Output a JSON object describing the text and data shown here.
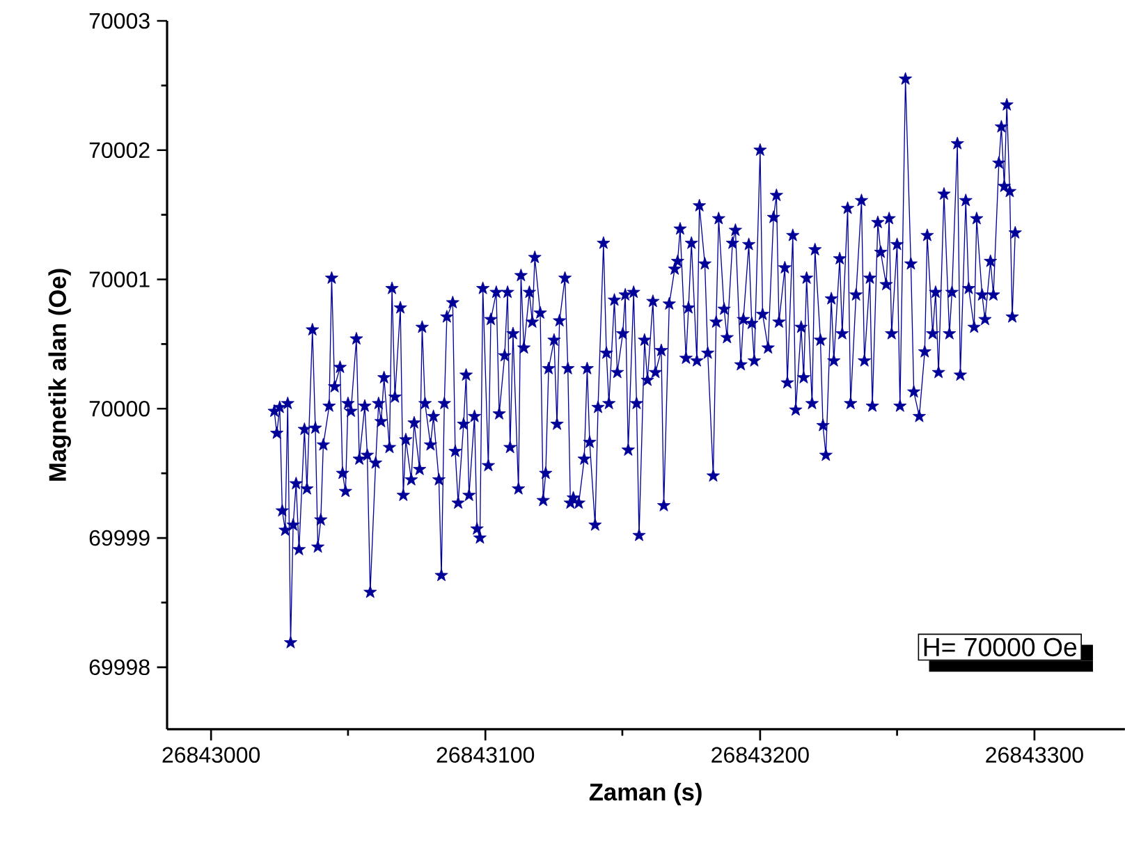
{
  "chart_data": {
    "type": "line",
    "xlabel": "Zaman (s)",
    "ylabel": "Magnetik alan (Oe)",
    "annotations": [
      "H= 70000 Oe"
    ],
    "xlim": [
      26842984,
      26843333
    ],
    "ylim": [
      69997.52,
      70003
    ],
    "xticks": [
      26843000,
      26843100,
      26843200,
      26843300
    ],
    "yticks": [
      69998,
      69999,
      70000,
      70001,
      70002,
      70003
    ],
    "marker": "star",
    "line_style": "solid",
    "x": [
      26843023,
      26843024,
      26843025,
      26843026,
      26843027,
      26843028,
      26843029,
      26843030,
      26843031,
      26843032,
      26843034,
      26843035,
      26843037,
      26843038,
      26843039,
      26843040,
      26843041,
      26843043,
      26843044,
      26843045,
      26843047,
      26843048,
      26843049,
      26843050,
      26843051,
      26843053,
      26843054,
      26843056,
      26843057,
      26843058,
      26843060,
      26843061,
      26843062,
      26843063,
      26843065,
      26843066,
      26843067,
      26843069,
      26843070,
      26843071,
      26843073,
      26843074,
      26843076,
      26843077,
      26843078,
      26843080,
      26843081,
      26843083,
      26843084,
      26843085,
      26843086,
      26843088,
      26843089,
      26843090,
      26843092,
      26843093,
      26843094,
      26843096,
      26843097,
      26843098,
      26843099,
      26843101,
      26843102,
      26843104,
      26843105,
      26843107,
      26843108,
      26843109,
      26843110,
      26843112,
      26843113,
      26843114,
      26843116,
      26843117,
      26843118,
      26843120,
      26843121,
      26843122,
      26843123,
      26843125,
      26843126,
      26843127,
      26843129,
      26843130,
      26843131,
      26843132,
      26843134,
      26843136,
      26843137,
      26843138,
      26843140,
      26843141,
      26843143,
      26843144,
      26843145,
      26843147,
      26843148,
      26843150,
      26843151,
      26843152,
      26843154,
      26843155,
      26843156,
      26843158,
      26843159,
      26843161,
      26843162,
      26843164,
      26843165,
      26843167,
      26843169,
      26843170,
      26843171,
      26843173,
      26843174,
      26843175,
      26843177,
      26843178,
      26843180,
      26843181,
      26843183,
      26843184,
      26843185,
      26843187,
      26843188,
      26843190,
      26843191,
      26843193,
      26843194,
      26843196,
      26843197,
      26843198,
      26843200,
      26843201,
      26843203,
      26843205,
      26843206,
      26843207,
      26843209,
      26843210,
      26843212,
      26843213,
      26843215,
      26843216,
      26843217,
      26843219,
      26843220,
      26843222,
      26843223,
      26843224,
      26843226,
      26843227,
      26843229,
      26843230,
      26843232,
      26843233,
      26843235,
      26843237,
      26843238,
      26843240,
      26843241,
      26843243,
      26843244,
      26843246,
      26843247,
      26843248,
      26843250,
      26843251,
      26843253,
      26843255,
      26843256,
      26843258,
      26843260,
      26843261,
      26843263,
      26843264,
      26843265,
      26843267,
      26843269,
      26843270,
      26843272,
      26843273,
      26843275,
      26843276,
      26843278,
      26843279,
      26843281,
      26843282,
      26843284,
      26843285,
      26843287,
      26843288,
      26843289,
      26843290,
      26843291,
      26843292,
      26843293
    ],
    "series": [
      {
        "color": "#000099",
        "values": [
          69999.98,
          69999.81,
          70000.01,
          69999.21,
          69999.06,
          70000.04,
          69998.19,
          69999.1,
          69999.42,
          69998.91,
          69999.84,
          69999.38,
          70000.61,
          69999.85,
          69998.93,
          69999.14,
          69999.72,
          70000.02,
          70001.01,
          70000.17,
          70000.32,
          69999.5,
          69999.36,
          70000.04,
          69999.98,
          70000.54,
          69999.61,
          70000.02,
          69999.64,
          69998.58,
          69999.58,
          70000.04,
          69999.9,
          70000.24,
          69999.7,
          70000.93,
          70000.09,
          70000.78,
          69999.33,
          69999.76,
          69999.45,
          69999.89,
          69999.53,
          70000.63,
          70000.04,
          69999.72,
          69999.94,
          69999.45,
          69998.71,
          70000.04,
          70000.71,
          70000.82,
          69999.67,
          69999.27,
          69999.88,
          70000.26,
          69999.33,
          69999.94,
          69999.07,
          69999.0,
          70000.93,
          69999.56,
          70000.69,
          70000.9,
          69999.96,
          70000.41,
          70000.9,
          69999.7,
          70000.58,
          69999.38,
          70001.03,
          70000.47,
          70000.9,
          70000.67,
          70001.17,
          70000.74,
          69999.29,
          69999.5,
          70000.31,
          70000.53,
          69999.88,
          70000.68,
          70001.01,
          70000.31,
          69999.27,
          69999.31,
          69999.27,
          69999.61,
          70000.31,
          69999.74,
          69999.1,
          70000.01,
          70001.28,
          70000.43,
          70000.04,
          70000.84,
          70000.28,
          70000.58,
          70000.88,
          69999.68,
          70000.9,
          70000.04,
          69999.02,
          70000.53,
          70000.22,
          70000.83,
          70000.28,
          70000.45,
          69999.25,
          70000.81,
          70001.08,
          70001.14,
          70001.39,
          70000.39,
          70000.78,
          70001.28,
          70000.37,
          70001.57,
          70001.12,
          70000.43,
          69999.48,
          70000.67,
          70001.47,
          70000.77,
          70000.55,
          70001.28,
          70001.38,
          70000.34,
          70000.69,
          70001.27,
          70000.66,
          70000.37,
          70002.0,
          70000.73,
          70000.47,
          70001.48,
          70001.65,
          70000.67,
          70001.09,
          70000.2,
          70001.34,
          69999.99,
          70000.63,
          70000.24,
          70001.01,
          70000.04,
          70001.23,
          70000.53,
          69999.87,
          69999.64,
          70000.85,
          70000.37,
          70001.16,
          70000.58,
          70001.55,
          70000.04,
          70000.88,
          70001.61,
          70000.37,
          70001.01,
          70000.02,
          70001.44,
          70001.21,
          70000.96,
          70001.47,
          70000.58,
          70001.27,
          70000.02,
          70002.55,
          70001.12,
          70000.13,
          69999.94,
          70000.44,
          70001.34,
          70000.58,
          70000.9,
          70000.28,
          70001.66,
          70000.58,
          70000.9,
          70002.05,
          70000.26,
          70001.61,
          70000.93,
          70000.63,
          70001.47,
          70000.88,
          70000.69,
          70001.14,
          70000.88,
          70001.9,
          70002.18,
          70001.72,
          70002.35,
          70001.68,
          70000.71,
          70001.36
        ]
      }
    ]
  }
}
